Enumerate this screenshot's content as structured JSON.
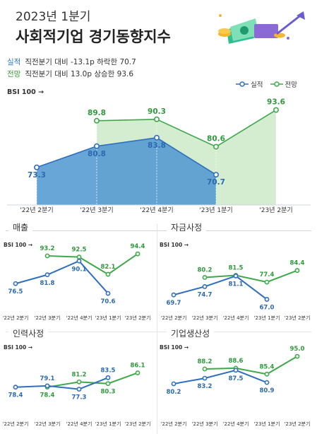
{
  "header": {
    "subtitle": "2023년 1분기",
    "title": "사회적기업 경기동향지수"
  },
  "summary": {
    "actual_key": "실적",
    "actual_text": "직전분기 대비 -13.1p 하락한 70.7",
    "forecast_key": "전망",
    "forecast_text": "직전분기 대비 13.0p 상승한 93.6"
  },
  "legend": {
    "actual": "실적",
    "forecast": "전망"
  },
  "colors": {
    "actual": "#2f6fbd",
    "forecast": "#3ea84a",
    "actual_fill": "#4d96d1",
    "forecast_fill": "#cde9c8"
  },
  "chart_data": [
    {
      "type": "area",
      "title": "",
      "ylabel": "BSI 100 →",
      "categories": [
        "'22년 2분기",
        "'22년 3분기",
        "'22년 4분기",
        "'23년 1분기",
        "'23년 2분기"
      ],
      "series": [
        {
          "name": "실적",
          "values": [
            73.3,
            80.8,
            83.8,
            70.7,
            null
          ]
        },
        {
          "name": "전망",
          "values": [
            null,
            89.8,
            90.3,
            80.6,
            93.6
          ]
        }
      ]
    },
    {
      "type": "line",
      "title": "매출",
      "ylabel": "BSI 100 →",
      "categories": [
        "'22년 2분기",
        "'22년 3분기",
        "'22년 4분기",
        "'23년 1분기",
        "'23년 2분기"
      ],
      "series": [
        {
          "name": "실적",
          "values": [
            76.5,
            81.8,
            90.1,
            70.6,
            null
          ]
        },
        {
          "name": "전망",
          "values": [
            null,
            93.2,
            92.5,
            82.1,
            94.4
          ]
        }
      ]
    },
    {
      "type": "line",
      "title": "자금사정",
      "ylabel": "BSI 100 →",
      "categories": [
        "'22년 2분기",
        "'22년 3분기",
        "'22년 4분기",
        "'23년 1분기",
        "'23년 2분기"
      ],
      "series": [
        {
          "name": "실적",
          "values": [
            69.7,
            74.7,
            81.1,
            67.0,
            null
          ]
        },
        {
          "name": "전망",
          "values": [
            null,
            80.2,
            81.5,
            77.4,
            84.4
          ]
        }
      ]
    },
    {
      "type": "line",
      "title": "인력사정",
      "ylabel": "BSI 100 →",
      "categories": [
        "'22년 2분기",
        "'22년 3분기",
        "'22년 4분기",
        "'23년 1분기",
        "'23년 2분기"
      ],
      "series": [
        {
          "name": "실적",
          "values": [
            78.4,
            79.1,
            77.3,
            83.5,
            null
          ]
        },
        {
          "name": "전망",
          "values": [
            null,
            78.4,
            81.2,
            80.3,
            86.1
          ]
        }
      ]
    },
    {
      "type": "line",
      "title": "기업생산성",
      "ylabel": "BSI 100 →",
      "categories": [
        "'22년 2분기",
        "'22년 3분기",
        "'22년 4분기",
        "'23년 1분기",
        "'23년 2분기"
      ],
      "series": [
        {
          "name": "실적",
          "values": [
            80.2,
            83.2,
            87.5,
            80.9,
            null
          ]
        },
        {
          "name": "전망",
          "values": [
            null,
            88.2,
            88.6,
            85.4,
            95.0
          ]
        }
      ]
    }
  ]
}
